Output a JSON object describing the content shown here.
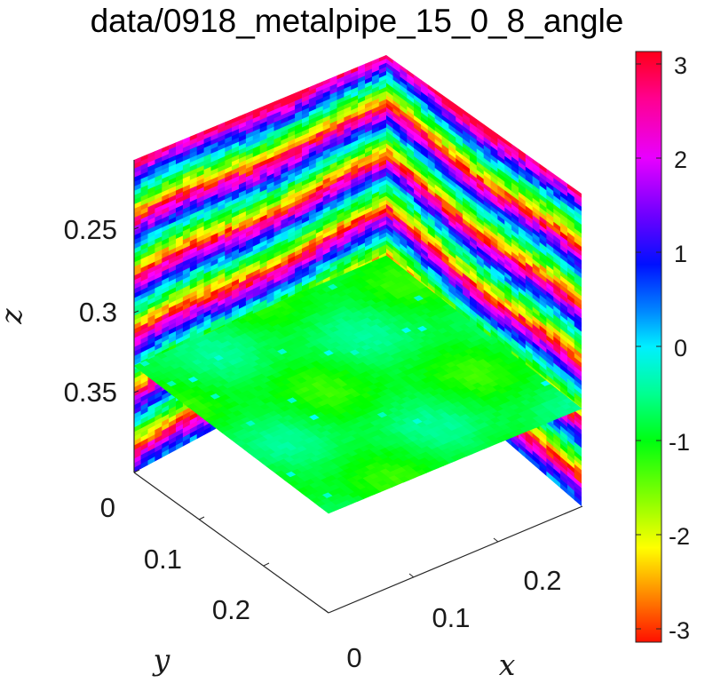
{
  "chart_data": {
    "type": "heatmap",
    "title": "data/0918_metalpipe_15_0_8_angle",
    "xlabel": "x",
    "ylabel": "y",
    "zlabel": "z",
    "x_ticks": [
      "0",
      "0.1",
      "0.2"
    ],
    "y_ticks": [
      "0",
      "0.1",
      "0.2"
    ],
    "z_ticks": [
      "0.25",
      "0.3",
      "0.35"
    ],
    "xlim": [
      0,
      0.28
    ],
    "ylim": [
      0,
      0.28
    ],
    "zlim": [
      0.2,
      0.4
    ],
    "z_direction": "reversed",
    "slices": [
      "x = 0 (vertical, left)",
      "y = 0 (vertical, right)",
      "z ≈ 0.33 (horizontal)"
    ],
    "colorbar": {
      "colormap": "hsv",
      "ticks": [
        "3",
        "2",
        "1",
        "0",
        "-1",
        "-2",
        "-3"
      ],
      "clim": [
        -3.14159,
        3.14159
      ]
    },
    "grid": false
  },
  "icons": {
    "colorbar": "colorbar-gradient"
  }
}
